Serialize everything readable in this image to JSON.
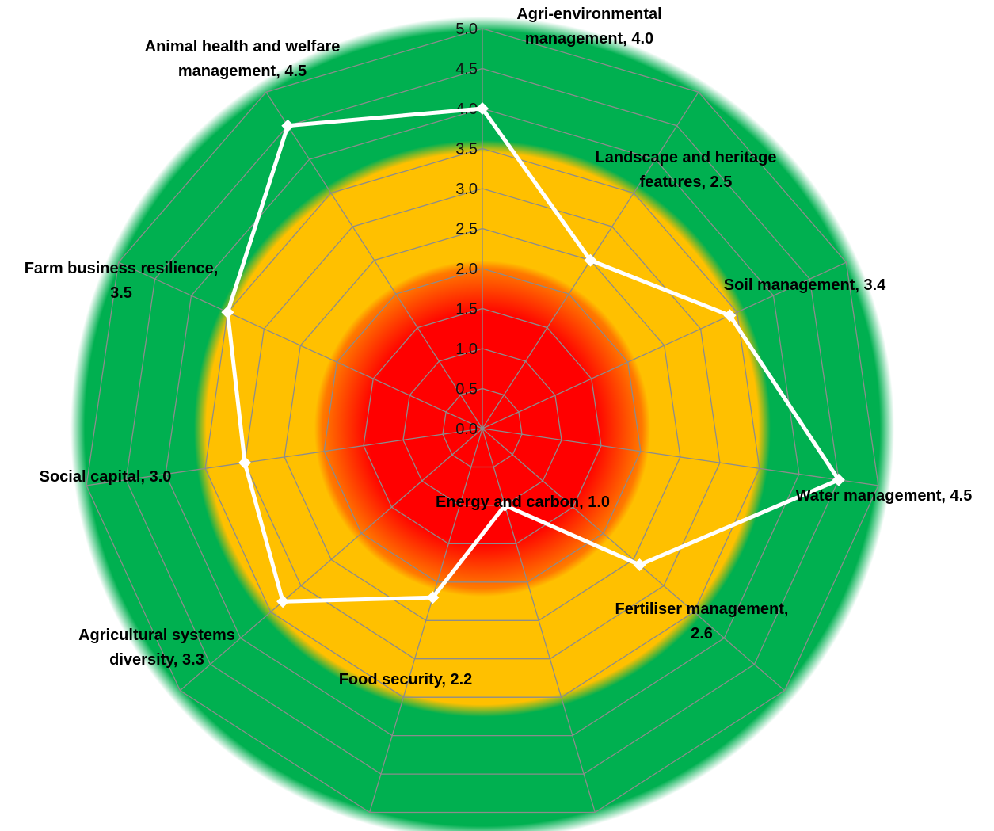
{
  "chart_data": {
    "type": "radar",
    "rmax": 5.0,
    "ticks": [
      "0.0",
      "0.5",
      "1.0",
      "1.5",
      "2.0",
      "2.5",
      "3.0",
      "3.5",
      "4.0",
      "4.5",
      "5.0"
    ],
    "tick_values": [
      0,
      0.5,
      1.0,
      1.5,
      2.0,
      2.5,
      3.0,
      3.5,
      4.0,
      4.5,
      5.0
    ],
    "background_zones": [
      {
        "name": "red",
        "from": 0,
        "to": 1.5,
        "color": "#ff0000"
      },
      {
        "name": "orange",
        "from": 1.5,
        "to": 2.0,
        "color": "#ff7a00"
      },
      {
        "name": "amber",
        "from": 2.0,
        "to": 3.5,
        "color": "#ffc000"
      },
      {
        "name": "green",
        "from": 3.5,
        "to": 5.0,
        "color": "#00b050"
      }
    ],
    "axes": [
      {
        "category": "Agri-environmental management",
        "value": 4.0,
        "label_lines": [
          "Agri-environmental",
          "management, 4.0"
        ]
      },
      {
        "category": "Landscape and heritage features",
        "value": 2.5,
        "label_lines": [
          "Landscape and heritage",
          "features, 2.5"
        ]
      },
      {
        "category": "Soil management",
        "value": 3.4,
        "label_lines": [
          "Soil management, 3.4"
        ]
      },
      {
        "category": "Water management",
        "value": 4.5,
        "label_lines": [
          "Water management, 4.5"
        ]
      },
      {
        "category": "Fertiliser management",
        "value": 2.6,
        "label_lines": [
          "Fertiliser management,",
          "2.6"
        ]
      },
      {
        "category": "Energy and carbon",
        "value": 1.0,
        "label_lines": [
          "Energy and carbon, 1.0"
        ]
      },
      {
        "category": "Food security",
        "value": 2.2,
        "label_lines": [
          "Food security, 2.2"
        ]
      },
      {
        "category": "Agricultural systems diversity",
        "value": 3.3,
        "label_lines": [
          "Agricultural systems",
          "diversity, 3.3"
        ]
      },
      {
        "category": "Social capital",
        "value": 3.0,
        "label_lines": [
          "Social capital, 3.0"
        ]
      },
      {
        "category": "Farm business resilience",
        "value": 3.5,
        "label_lines": [
          "Farm business resilience,",
          "3.5"
        ]
      },
      {
        "category": "Animal health and welfare management",
        "value": 4.5,
        "label_lines": [
          "Animal health and welfare",
          "management, 4.5"
        ]
      }
    ],
    "series_color": "#ffffff",
    "grid_color": "#8c8c8c",
    "legend": "none"
  }
}
